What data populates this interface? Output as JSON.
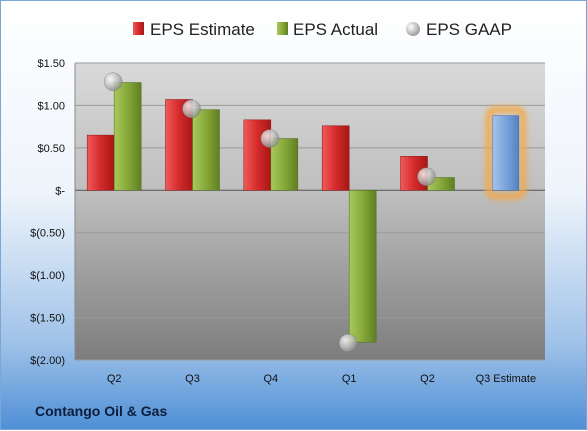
{
  "company": "Contango Oil & Gas",
  "chart_data": {
    "type": "bar",
    "categories": [
      "Q2",
      "Q3",
      "Q4",
      "Q1",
      "Q2",
      "Q3 Estimate"
    ],
    "ylim": [
      -2.0,
      1.5
    ],
    "y_ticks": [
      1.5,
      1.0,
      0.5,
      0,
      -0.5,
      -1.0,
      -1.5,
      -2.0
    ],
    "y_tick_labels": [
      "$1.50",
      "$1.00",
      "$0.50",
      "$-",
      "$(0.50)",
      "$(1.00)",
      "$(1.50)",
      "$(2.00)"
    ],
    "legend_position": "top",
    "grid": true,
    "series": [
      {
        "name": "EPS Estimate",
        "type": "bar",
        "color": "#d42b2b",
        "values": [
          0.65,
          1.07,
          0.83,
          0.76,
          0.4,
          null
        ]
      },
      {
        "name": "EPS Actual",
        "type": "bar",
        "color": "#86a93a",
        "values": [
          1.27,
          0.95,
          0.61,
          -1.79,
          0.15,
          null
        ]
      },
      {
        "name": "EPS GAAP",
        "type": "marker",
        "color": "#b9b9b9",
        "values": [
          1.28,
          0.96,
          0.61,
          -1.8,
          0.16,
          null
        ]
      }
    ],
    "estimate_bar": {
      "category_index": 5,
      "value": 0.88,
      "color": "#7aa3dd",
      "highlight": "#f4a94a"
    }
  }
}
